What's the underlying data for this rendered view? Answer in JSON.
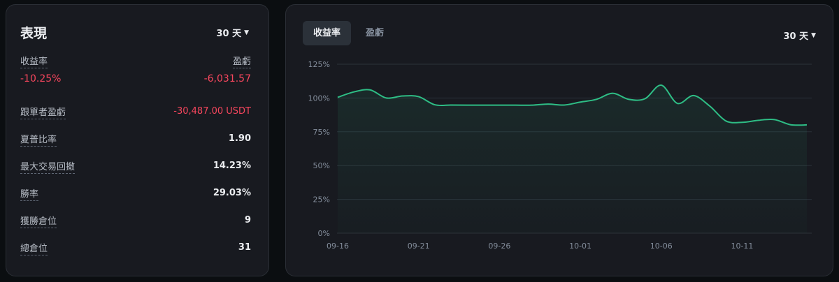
{
  "performance": {
    "title": "表現",
    "period": "30 天",
    "roi_label": "收益率",
    "pnl_label": "盈虧",
    "roi_value": "-10.25%",
    "pnl_value": "-6,031.57",
    "stats": [
      {
        "label": "跟單者盈虧",
        "value": "-30,487.00 USDT",
        "negative": true
      },
      {
        "label": "夏普比率",
        "value": "1.90",
        "negative": false
      },
      {
        "label": "最大交易回撤",
        "value": "14.23%",
        "negative": false
      },
      {
        "label": "勝率",
        "value": "29.03%",
        "negative": false
      },
      {
        "label": "獲勝倉位",
        "value": "9",
        "negative": false
      },
      {
        "label": "總倉位",
        "value": "31",
        "negative": false
      }
    ]
  },
  "chart_panel": {
    "tabs": [
      {
        "label": "收益率",
        "active": true
      },
      {
        "label": "盈虧",
        "active": false
      }
    ],
    "period": "30 天"
  },
  "colors": {
    "negative": "#f6465d",
    "line": "#2ebd85",
    "card_bg": "#181a20",
    "page_bg": "#0b0e11"
  },
  "chart_data": {
    "type": "area",
    "title": "",
    "xlabel": "",
    "ylabel": "",
    "y_ticks": [
      "0%",
      "25%",
      "50%",
      "75%",
      "100%",
      "125%"
    ],
    "ylim": [
      0,
      125
    ],
    "x_ticks": [
      "09-16",
      "09-21",
      "09-26",
      "10-01",
      "10-06",
      "10-11"
    ],
    "grid": true,
    "series": [
      {
        "points": [
          [
            "09-16",
            100.5
          ],
          [
            "09-17",
            104.5
          ],
          [
            "09-18",
            106
          ],
          [
            "09-19",
            100
          ],
          [
            "09-20",
            101.5
          ],
          [
            "09-21",
            101
          ],
          [
            "09-22",
            95
          ],
          [
            "09-23",
            94.8
          ],
          [
            "09-24",
            94.7
          ],
          [
            "09-25",
            94.7
          ],
          [
            "09-26",
            94.7
          ],
          [
            "09-27",
            94.7
          ],
          [
            "09-28",
            94.7
          ],
          [
            "09-29",
            95.5
          ],
          [
            "09-30",
            94.8
          ],
          [
            "10-01",
            97
          ],
          [
            "10-02",
            99
          ],
          [
            "10-03",
            103.5
          ],
          [
            "10-04",
            99
          ],
          [
            "10-05",
            99.5
          ],
          [
            "10-06",
            109.5
          ],
          [
            "10-07",
            96
          ],
          [
            "10-08",
            101.8
          ],
          [
            "10-09",
            94
          ],
          [
            "10-10",
            83
          ],
          [
            "10-11",
            82
          ],
          [
            "10-12",
            83.5
          ],
          [
            "10-13",
            84
          ],
          [
            "10-14",
            80.2
          ],
          [
            "10-15",
            80.1
          ]
        ]
      }
    ]
  }
}
